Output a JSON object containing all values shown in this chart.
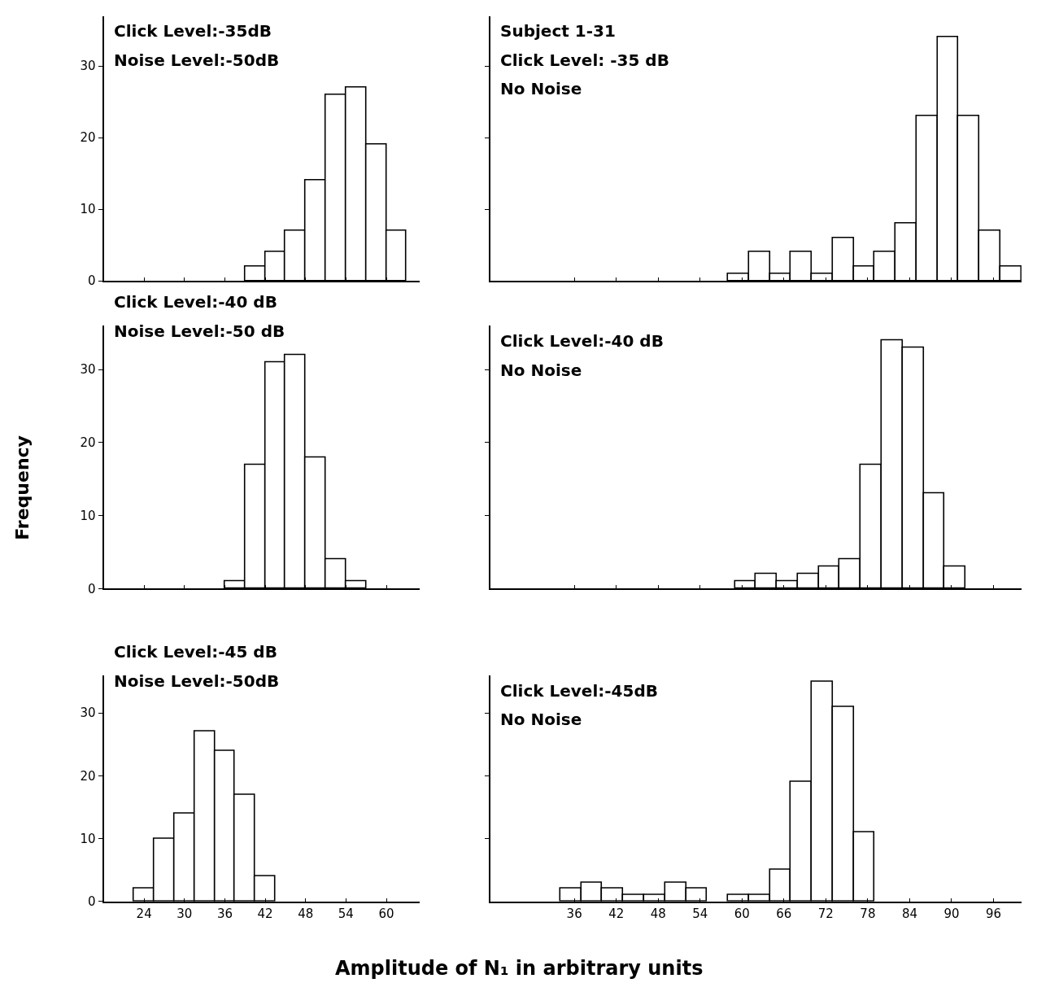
{
  "chart_data": [
    {
      "type": "histogram",
      "annotations": [
        "Click Level:-35dB",
        "Noise Level:-50dB"
      ],
      "bins": [
        39,
        42,
        45,
        48,
        51,
        54,
        57,
        60,
        63
      ],
      "values": [
        2,
        4,
        7,
        14,
        26,
        27,
        19,
        7
      ],
      "color": "#ffffff",
      "xlim": [
        18,
        65
      ],
      "xticks": [
        24,
        30,
        36,
        42,
        48,
        54,
        60
      ],
      "ylim": [
        0,
        37
      ],
      "yticks": [
        0,
        10,
        20,
        30
      ],
      "tick_labels": "y"
    },
    {
      "type": "histogram",
      "annotations": [
        "Subject 1-31",
        "Click Level: -35 dB",
        "No Noise"
      ],
      "bins": [
        58,
        61,
        64,
        67,
        70,
        73,
        76,
        79,
        82,
        85,
        88,
        91,
        94,
        97,
        100
      ],
      "values": [
        1,
        4,
        1,
        4,
        1,
        6,
        2,
        4,
        8,
        23,
        34,
        23,
        7,
        2
      ],
      "color": "#ffffff",
      "xlim": [
        24,
        100
      ],
      "xticks": [
        36,
        42,
        48,
        54,
        60,
        66,
        72,
        78,
        84,
        90,
        96
      ],
      "ylim": [
        0,
        37
      ],
      "yticks": [
        {
          "value": 10,
          "label": null
        },
        {
          "value": 20,
          "label": null
        },
        {
          "value": 30,
          "label": null
        }
      ],
      "tick_labels": false
    },
    {
      "type": "histogram",
      "annotations": [
        "Click Level:-40 dB",
        "Noise Level:-50 dB"
      ],
      "ylabel": "Frequency",
      "bins": [
        36,
        39,
        42,
        45,
        48,
        51,
        54,
        57
      ],
      "values": [
        1,
        17,
        31,
        32,
        18,
        4,
        1
      ],
      "color": "#ffffff",
      "xlim": [
        18,
        65
      ],
      "xticks": [
        24,
        30,
        36,
        42,
        48,
        54,
        60
      ],
      "ylim": [
        0,
        36
      ],
      "yticks": [
        0,
        10,
        20,
        30
      ],
      "tick_labels": "y"
    },
    {
      "type": "histogram",
      "annotations": [
        "Click Level:-40 dB",
        "No Noise"
      ],
      "bins": [
        59,
        62,
        65,
        68,
        71,
        74,
        77,
        80,
        83,
        86,
        89,
        92
      ],
      "values": [
        1,
        2,
        1,
        2,
        3,
        4,
        17,
        34,
        33,
        13,
        3
      ],
      "color": "#ffffff",
      "xlim": [
        24,
        100
      ],
      "xticks": [
        36,
        42,
        48,
        54,
        60,
        66,
        72,
        78,
        84,
        90,
        96
      ],
      "ylim": [
        0,
        36
      ],
      "yticks": [
        {
          "value": 10,
          "label": null
        },
        {
          "value": 20,
          "label": null
        },
        {
          "value": 30,
          "label": null
        }
      ],
      "tick_labels": false
    },
    {
      "type": "histogram",
      "annotations": [
        "Click Level:-45 dB",
        "Noise Level:-50dB"
      ],
      "xlabel": "Amplitude of N₁ in arbitrary units",
      "bins": [
        22.5,
        25.5,
        28.5,
        31.5,
        34.5,
        37.5,
        40.5,
        43.5
      ],
      "values": [
        2,
        10,
        14,
        27,
        24,
        17,
        4
      ],
      "color": "#ffffff",
      "xlim": [
        18,
        65
      ],
      "xticks": [
        24,
        30,
        36,
        42,
        48,
        54,
        60
      ],
      "ylim": [
        0,
        36
      ],
      "yticks": [
        0,
        10,
        20,
        30
      ]
    },
    {
      "type": "histogram",
      "annotations": [
        "Click Level:-45dB",
        "No Noise"
      ],
      "bins": [
        34,
        37,
        40,
        43,
        46,
        49,
        52,
        55,
        58,
        61,
        64,
        67,
        70,
        73,
        76,
        79
      ],
      "values": [
        2,
        3,
        2,
        1,
        1,
        3,
        2,
        0,
        1,
        1,
        5,
        19,
        35,
        31,
        11
      ],
      "color": "#ffffff",
      "xlim": [
        24,
        100
      ],
      "xticks": [
        36,
        42,
        48,
        54,
        60,
        66,
        72,
        78,
        84,
        90,
        96
      ],
      "ylim": [
        0,
        36
      ],
      "yticks": [
        {
          "value": 10,
          "label": null
        },
        {
          "value": 20,
          "label": null
        },
        {
          "value": 30,
          "label": null
        }
      ],
      "tick_labels": "x"
    }
  ]
}
